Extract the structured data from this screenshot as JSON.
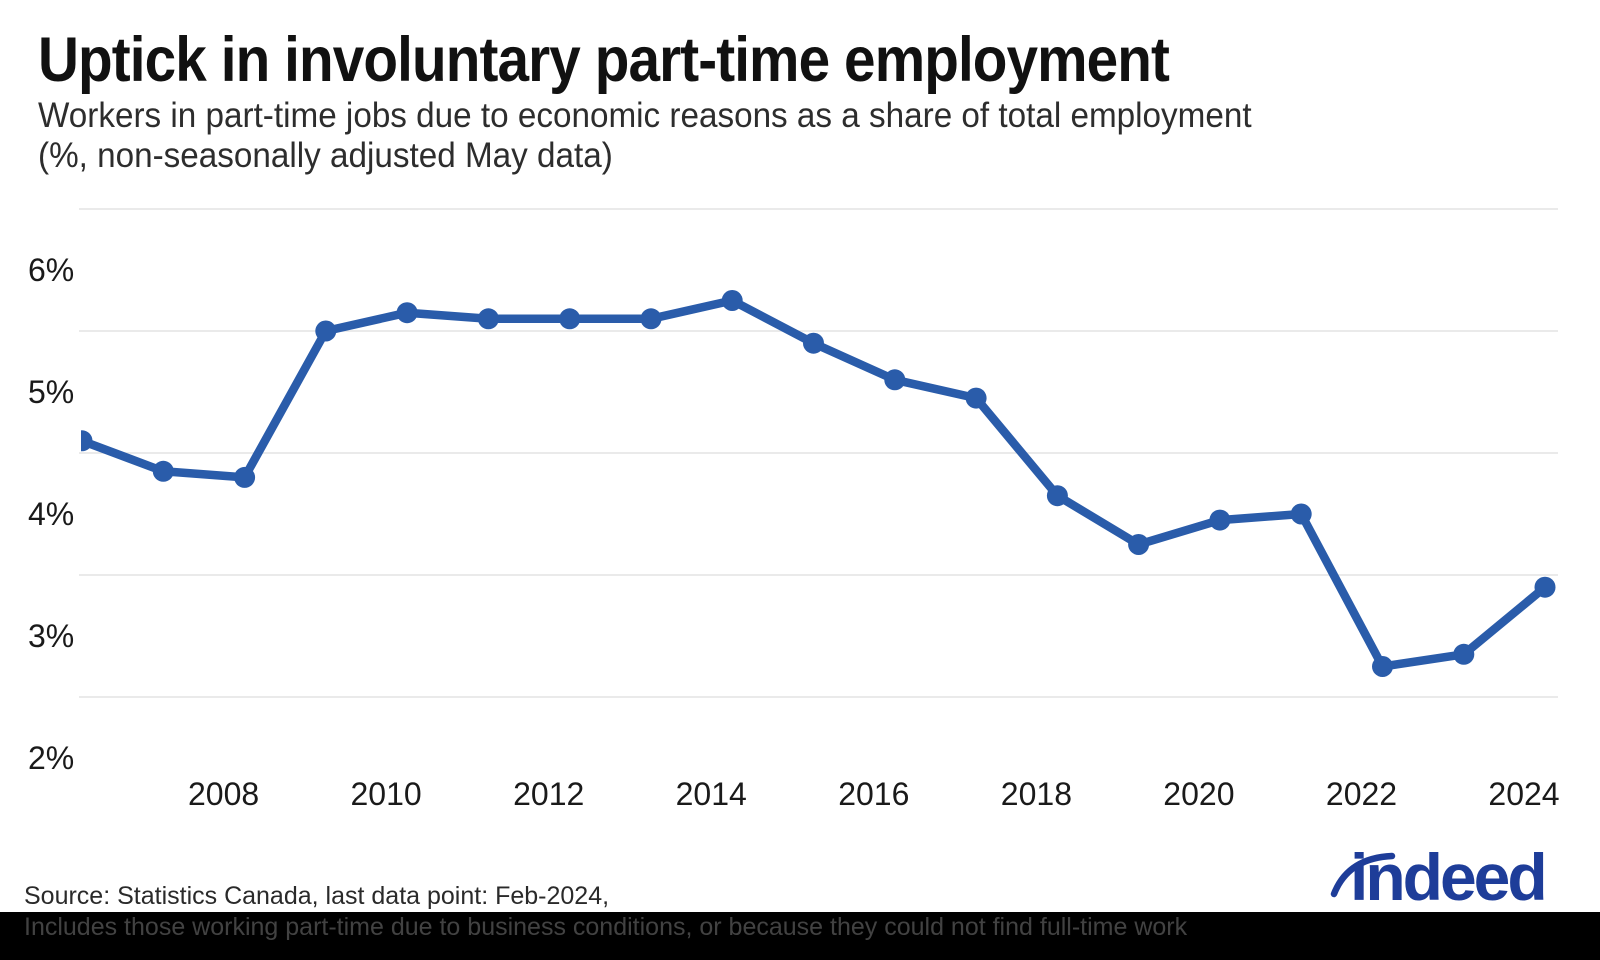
{
  "header": {
    "title": "Uptick in involuntary part-time employment",
    "subtitle_line1": "Workers in part-time jobs due to economic reasons as a share of total employment",
    "subtitle_line2": "(%, non-seasonally adjusted May data)"
  },
  "chart_data": {
    "type": "line",
    "title": "Uptick in involuntary part-time employment",
    "subtitle": "Workers in part-time jobs due to economic reasons as a share of total employment (%, non-seasonally adjusted May data)",
    "x": [
      "May 2006",
      "May 2007",
      "May 2008",
      "May 2009",
      "May 2010",
      "May 2011",
      "May 2012",
      "May 2013",
      "May 2014",
      "May 2015",
      "May 2016",
      "May 2017",
      "May 2018",
      "May 2019",
      "May 2020",
      "May 2021",
      "May 2022",
      "May 2023",
      "Feb 2024"
    ],
    "values": [
      4.6,
      4.35,
      4.3,
      5.5,
      5.65,
      5.6,
      5.6,
      5.6,
      5.75,
      5.4,
      5.1,
      4.95,
      4.15,
      3.75,
      3.95,
      4.0,
      2.75,
      2.85,
      3.4
    ],
    "series_name": "Involuntary part-time share of total employment (%)",
    "x_tick_labels": [
      "2008",
      "2010",
      "2012",
      "2014",
      "2016",
      "2018",
      "2020",
      "2022",
      "2024"
    ],
    "y_tick_labels": [
      "6%",
      "5%",
      "4%",
      "3%",
      "2%"
    ],
    "y_tick_values": [
      6,
      5,
      4,
      3,
      2
    ],
    "y_gridline_values": [
      6.5,
      5.5,
      4.5,
      3.5,
      2.5
    ],
    "ylim": [
      2,
      6.5
    ],
    "grid": "horizontal-only",
    "legend_position": "none",
    "line_color": "#2a5caa",
    "grid_color": "#e3e3e3",
    "tick_label_color": "#1a1a1a"
  },
  "footer": {
    "source_line": "Source: Statistics Canada, last data point: Feb-2024,",
    "note_line": "Includes those working part-time due to business conditions, or because they could not find full-time work",
    "logo_text": "indeed",
    "logo_color": "#1e3d99"
  }
}
